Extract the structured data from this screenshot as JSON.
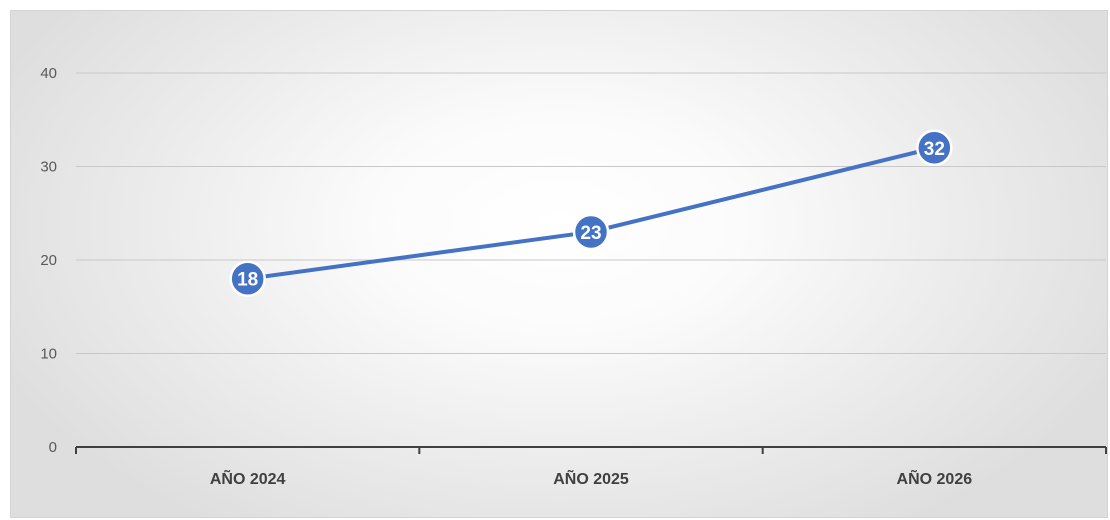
{
  "chart_data": {
    "type": "line",
    "title": "",
    "xlabel": "",
    "ylabel": "",
    "categories": [
      "AÑO 2024",
      "AÑO 2025",
      "AÑO 2026"
    ],
    "series": [
      {
        "values": [
          18,
          23,
          32
        ],
        "color": "#4472c4"
      }
    ],
    "ylim": [
      0,
      40
    ],
    "yticks": [
      "0",
      "10",
      "20",
      "30",
      "40"
    ],
    "data_labels": [
      "18",
      "23",
      "32"
    ],
    "grid": true,
    "legend": "none"
  }
}
